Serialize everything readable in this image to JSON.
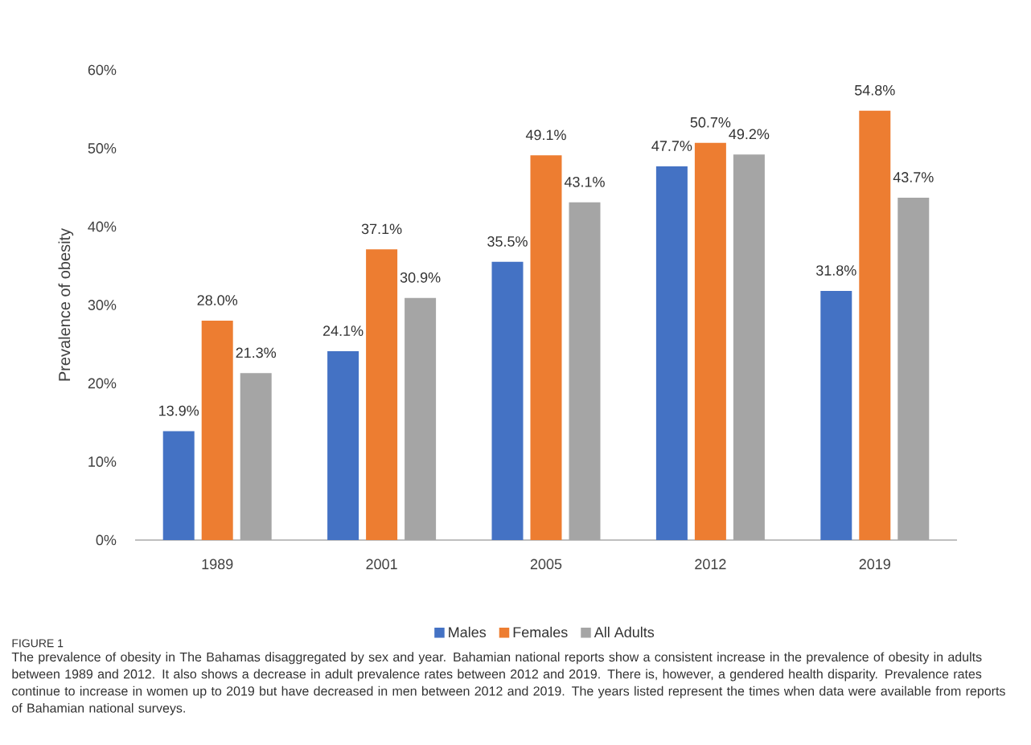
{
  "chart_data": {
    "type": "bar",
    "categories": [
      "1989",
      "2001",
      "2005",
      "2012",
      "2019"
    ],
    "series": [
      {
        "name": "Males",
        "color": "#4472c4",
        "values": [
          13.9,
          24.1,
          35.5,
          47.7,
          31.8
        ],
        "value_labels": [
          "13.9%",
          "24.1%",
          "35.5%",
          "47.7%",
          "31.8%"
        ]
      },
      {
        "name": "Females",
        "color": "#ed7d31",
        "values": [
          28.0,
          37.1,
          49.1,
          50.7,
          54.8
        ],
        "value_labels": [
          "28.0%",
          "37.1%",
          "49.1%",
          "50.7%",
          "54.8%"
        ]
      },
      {
        "name": "All Adults",
        "color": "#a5a5a5",
        "values": [
          21.3,
          30.9,
          43.1,
          49.2,
          43.7
        ],
        "value_labels": [
          "21.3%",
          "30.9%",
          "43.1%",
          "49.2%",
          "43.7%"
        ]
      }
    ],
    "ylabel": "Prevalence of obesity",
    "ylim": [
      0,
      60
    ],
    "yticks": [
      {
        "value": 0,
        "label": "0%"
      },
      {
        "value": 10,
        "label": "10%"
      },
      {
        "value": 20,
        "label": "20%"
      },
      {
        "value": 30,
        "label": "30%"
      },
      {
        "value": 40,
        "label": "40%"
      },
      {
        "value": 50,
        "label": "50%"
      },
      {
        "value": 60,
        "label": "60%"
      }
    ],
    "legend": "bottom",
    "annotations": [
      "FIGURE 1",
      "The prevalence of obesity in The Bahamas disaggregated by sex and year. Bahamian national reports show a consistent increase in the prevalence of obesity in adults between 1989 and 2012. It also shows a decrease in adult prevalence rates between 2012 and 2019. There is, however, a gendered health disparity. Prevalence rates continue to increase in women up to 2019 but have decreased in men between 2012 and 2019. The years listed represent the times when data were available from reports of Bahamian national surveys."
    ]
  }
}
